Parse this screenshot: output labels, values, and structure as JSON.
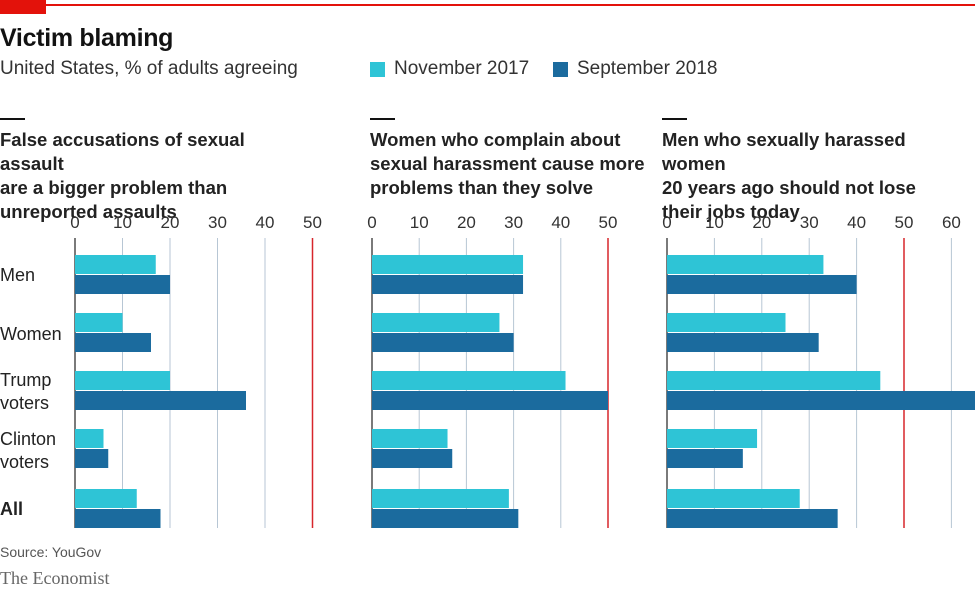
{
  "header": {
    "title": "Victim blaming",
    "subtitle": "United States, % of adults agreeing"
  },
  "legend": [
    {
      "label": "November 2017",
      "color": "#2ec4d6"
    },
    {
      "label": "September 2018",
      "color": "#1b6b9e"
    }
  ],
  "categories": [
    "Men",
    "Women",
    "Trump voters",
    "Clinton voters",
    "All"
  ],
  "category_labels": [
    {
      "lines": [
        "Men"
      ],
      "bold": false
    },
    {
      "lines": [
        "Women"
      ],
      "bold": false
    },
    {
      "lines": [
        "Trump",
        "voters"
      ],
      "bold": false
    },
    {
      "lines": [
        "Clinton",
        "voters"
      ],
      "bold": false
    },
    {
      "lines": [
        "All"
      ],
      "bold": true
    }
  ],
  "source": "Source: YouGov",
  "brand": "The Economist",
  "colors": {
    "nov2017": "#2ec4d6",
    "sep2018": "#1b6b9e",
    "reference_line": "#d7262b",
    "grid": "#b7c6d4"
  },
  "chart_data": [
    {
      "type": "bar",
      "orientation": "horizontal",
      "title": "False accusations of sexual assault are a bigger problem than unreported assaults",
      "title_lines": [
        "False accusations of sexual assault",
        "are a bigger problem than",
        "unreported assaults"
      ],
      "categories": [
        "Men",
        "Women",
        "Trump voters",
        "Clinton voters",
        "All"
      ],
      "series": [
        {
          "name": "November 2017",
          "values": [
            17,
            10,
            20,
            6,
            13
          ]
        },
        {
          "name": "September 2018",
          "values": [
            20,
            16,
            36,
            7,
            18
          ]
        }
      ],
      "xlim": [
        0,
        50
      ],
      "ticks": [
        0,
        10,
        20,
        30,
        40,
        50
      ],
      "reference_line": 50,
      "grid": true
    },
    {
      "type": "bar",
      "orientation": "horizontal",
      "title": "Women who complain about sexual harassment cause more problems than they solve",
      "title_lines": [
        "Women who complain about",
        "sexual harassment cause more",
        "problems than they solve"
      ],
      "categories": [
        "Men",
        "Women",
        "Trump voters",
        "Clinton voters",
        "All"
      ],
      "series": [
        {
          "name": "November 2017",
          "values": [
            32,
            27,
            41,
            16,
            29
          ]
        },
        {
          "name": "September 2018",
          "values": [
            32,
            30,
            50,
            17,
            31
          ]
        }
      ],
      "xlim": [
        0,
        50
      ],
      "ticks": [
        0,
        10,
        20,
        30,
        40,
        50
      ],
      "reference_line": 50,
      "grid": true
    },
    {
      "type": "bar",
      "orientation": "horizontal",
      "title": "Men who sexually harassed women 20 years ago should not lose their jobs today",
      "title_lines": [
        "Men who sexually harassed women",
        "20 years ago should not lose",
        "their jobs today"
      ],
      "categories": [
        "Men",
        "Women",
        "Trump voters",
        "Clinton voters",
        "All"
      ],
      "series": [
        {
          "name": "November 2017",
          "values": [
            33,
            25,
            45,
            19,
            28
          ]
        },
        {
          "name": "September 2018",
          "values": [
            40,
            32,
            65,
            16,
            36
          ]
        }
      ],
      "xlim": [
        0,
        65
      ],
      "ticks": [
        0,
        10,
        20,
        30,
        40,
        50,
        60
      ],
      "reference_line": 50,
      "grid": true
    }
  ]
}
